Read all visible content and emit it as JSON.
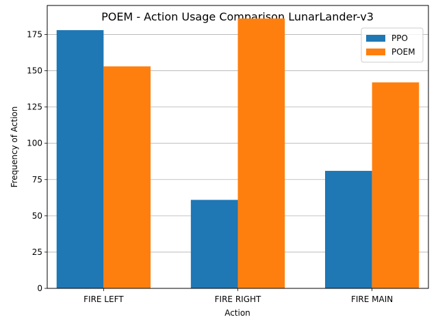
{
  "chart_data": {
    "type": "bar",
    "title": "POEM - Action Usage Comparison LunarLander-v3",
    "xlabel": "Action",
    "ylabel": "Frequency of Action",
    "categories": [
      "FIRE LEFT",
      "FIRE RIGHT",
      "FIRE MAIN"
    ],
    "series": [
      {
        "name": "PPO",
        "values": [
          178,
          61,
          81
        ],
        "color": "#1f77b4"
      },
      {
        "name": "POEM",
        "values": [
          153,
          186,
          142
        ],
        "color": "#ff7f0e"
      }
    ],
    "ylim": [
      0,
      195
    ],
    "yticks": [
      0,
      25,
      50,
      75,
      100,
      125,
      150,
      175
    ],
    "grid": "y",
    "legend_position": "top-right"
  }
}
